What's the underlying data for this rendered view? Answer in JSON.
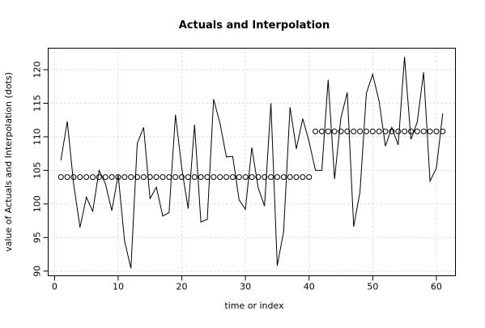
{
  "chart_data": {
    "type": "line",
    "title": "Actuals and Interpolation",
    "xlabel": "time or index",
    "ylabel": "value of Actuals and Interpolation (dots)",
    "xlim": [
      -1,
      63
    ],
    "ylim": [
      89.3,
      123.2
    ],
    "x_ticks": [
      0,
      10,
      20,
      30,
      40,
      50,
      60
    ],
    "y_ticks": [
      90,
      95,
      100,
      105,
      110,
      115,
      120
    ],
    "grid": true,
    "series": [
      {
        "style": "line",
        "x": [
          1,
          2,
          3,
          4,
          5,
          6,
          7,
          8,
          9,
          10,
          11,
          12,
          13,
          14,
          15,
          16,
          17,
          18,
          19,
          20,
          21,
          22,
          23,
          24,
          25,
          26,
          27,
          28,
          29,
          30,
          31,
          32,
          33,
          34,
          35,
          36,
          37,
          38,
          39,
          40,
          41,
          42,
          43,
          44,
          45,
          46,
          47,
          48,
          49,
          50,
          51,
          52,
          53,
          54,
          55,
          56,
          57,
          58,
          59,
          60,
          61
        ],
        "values": [
          106.5,
          112.3,
          103.0,
          96.5,
          101.0,
          98.9,
          105.0,
          103.0,
          99.0,
          104.3,
          94.5,
          90.4,
          109.0,
          111.4,
          100.8,
          102.5,
          98.2,
          98.7,
          113.3,
          105.3,
          99.3,
          111.8,
          97.3,
          97.7,
          115.6,
          112.0,
          107.0,
          107.1,
          100.6,
          99.2,
          108.4,
          102.4,
          99.7,
          115.0,
          90.8,
          95.9,
          114.4,
          108.2,
          112.7,
          109.3,
          105.0,
          105.0,
          118.5,
          103.7,
          112.8,
          116.6,
          96.6,
          101.8,
          116.5,
          119.3,
          115.3,
          108.6,
          111.4,
          108.8,
          121.9,
          109.6,
          112.2,
          119.6,
          103.4,
          105.3,
          113.5
        ]
      },
      {
        "style": "points",
        "x": [
          1,
          2,
          3,
          4,
          5,
          6,
          7,
          8,
          9,
          10,
          11,
          12,
          13,
          14,
          15,
          16,
          17,
          18,
          19,
          20,
          21,
          22,
          23,
          24,
          25,
          26,
          27,
          28,
          29,
          30,
          31,
          32,
          33,
          34,
          35,
          36,
          37,
          38,
          39,
          40,
          41,
          42,
          43,
          44,
          45,
          46,
          47,
          48,
          49,
          50,
          51,
          52,
          53,
          54,
          55,
          56,
          57,
          58,
          59,
          60,
          61
        ],
        "values": [
          104.0,
          104.0,
          104.0,
          104.0,
          104.0,
          104.0,
          104.0,
          104.0,
          104.0,
          104.0,
          104.0,
          104.0,
          104.0,
          104.0,
          104.0,
          104.0,
          104.0,
          104.0,
          104.0,
          104.0,
          104.0,
          104.0,
          104.0,
          104.0,
          104.0,
          104.0,
          104.0,
          104.0,
          104.0,
          104.0,
          104.0,
          104.0,
          104.0,
          104.0,
          104.0,
          104.0,
          104.0,
          104.0,
          104.0,
          104.0,
          110.8,
          110.8,
          110.8,
          110.8,
          110.8,
          110.8,
          110.8,
          110.8,
          110.8,
          110.8,
          110.8,
          110.8,
          110.8,
          110.8,
          110.8,
          110.8,
          110.8,
          110.8,
          110.8,
          110.8,
          110.8
        ]
      }
    ]
  }
}
